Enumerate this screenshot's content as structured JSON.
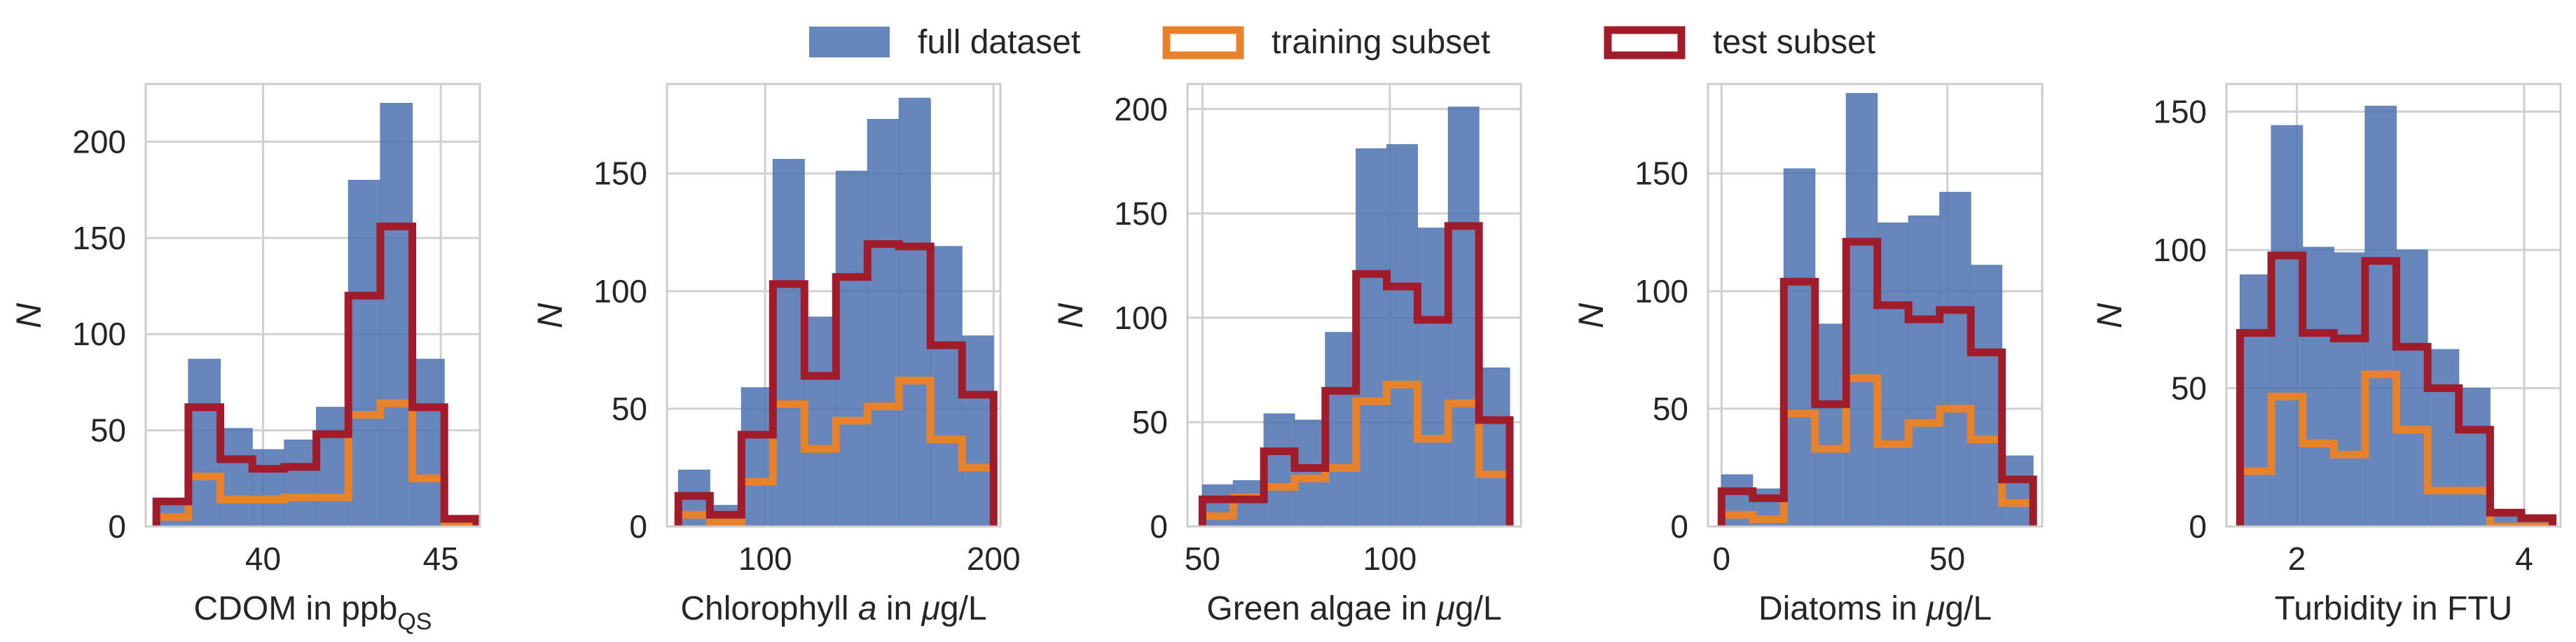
{
  "legend": [
    {
      "label": "full dataset",
      "style": "filled",
      "color": "#4c72b0"
    },
    {
      "label": "training subset",
      "style": "step",
      "color": "#e8822a"
    },
    {
      "label": "test subset",
      "style": "step",
      "color": "#a01c2a"
    }
  ],
  "colors": {
    "full": "#4c72b0",
    "train": "#e8822a",
    "test": "#a01c2a",
    "grid": "#d0d0d0"
  },
  "chart_data": [
    {
      "type": "histogram",
      "xlabel": "CDOM in ppb",
      "xlabel_sub": "QS",
      "ylabel": "N",
      "xlim": [
        36.7,
        46.1
      ],
      "ylim": [
        0,
        230
      ],
      "xticks": [
        40,
        45
      ],
      "yticks": [
        0,
        50,
        100,
        150,
        200
      ],
      "bin_edges": [
        37,
        37.9,
        38.8,
        39.7,
        40.6,
        41.5,
        42.4,
        43.3,
        44.2,
        45.1,
        46
      ],
      "series": [
        {
          "name": "full dataset",
          "values": [
            12,
            87,
            51,
            40,
            45,
            62,
            180,
            220,
            87,
            5
          ]
        },
        {
          "name": "training subset",
          "values": [
            5,
            26,
            14,
            14,
            15,
            15,
            58,
            64,
            25,
            2
          ]
        },
        {
          "name": "test subset",
          "values": [
            13,
            62,
            35,
            30,
            31,
            48,
            120,
            156,
            62,
            4
          ]
        }
      ]
    },
    {
      "type": "histogram",
      "xlabel": "Chlorophyll a in μg/L",
      "xlabel_parts": [
        "Chlorophyll ",
        "a",
        " in ",
        "μ",
        "g/L"
      ],
      "ylabel": "N",
      "xlim": [
        57,
        203
      ],
      "ylim": [
        0,
        188
      ],
      "xticks": [
        100,
        200
      ],
      "yticks": [
        0,
        50,
        100,
        150
      ],
      "bin_edges": [
        62,
        75.8,
        89.6,
        103.4,
        117.2,
        131,
        144.8,
        158.6,
        172.4,
        186.2,
        200
      ],
      "series": [
        {
          "name": "full dataset",
          "values": [
            24,
            9,
            59,
            156,
            89,
            151,
            173,
            182,
            119,
            81
          ]
        },
        {
          "name": "training subset",
          "values": [
            5,
            2,
            19,
            52,
            33,
            45,
            51,
            62,
            37,
            25
          ]
        },
        {
          "name": "test subset",
          "values": [
            13,
            5,
            39,
            103,
            64,
            106,
            120,
            119,
            77,
            56
          ]
        }
      ]
    },
    {
      "type": "histogram",
      "xlabel": "Green algae in μg/L",
      "xlabel_parts": [
        "Green algae in ",
        "μ",
        "g/L"
      ],
      "ylabel": "N",
      "xlim": [
        46,
        135
      ],
      "ylim": [
        0,
        212
      ],
      "xticks": [
        50,
        100
      ],
      "yticks": [
        0,
        50,
        100,
        150,
        200
      ],
      "bin_edges": [
        50,
        58.2,
        66.4,
        74.6,
        82.8,
        91,
        99.2,
        107.4,
        115.6,
        123.8,
        132
      ],
      "series": [
        {
          "name": "full dataset",
          "values": [
            20,
            22,
            54,
            51,
            93,
            181,
            183,
            143,
            201,
            76
          ]
        },
        {
          "name": "training subset",
          "values": [
            5,
            14,
            19,
            23,
            28,
            60,
            68,
            42,
            59,
            25
          ]
        },
        {
          "name": "test subset",
          "values": [
            13,
            13,
            36,
            28,
            65,
            121,
            115,
            99,
            144,
            51
          ]
        }
      ]
    },
    {
      "type": "histogram",
      "xlabel": "Diatoms in μg/L",
      "xlabel_parts": [
        "Diatoms in ",
        "μ",
        "g/L"
      ],
      "ylabel": "N",
      "xlim": [
        -3,
        71
      ],
      "ylim": [
        0,
        188
      ],
      "xticks": [
        0,
        50
      ],
      "yticks": [
        0,
        50,
        100,
        150
      ],
      "bin_edges": [
        0,
        6.9,
        13.8,
        20.7,
        27.6,
        34.5,
        41.4,
        48.3,
        55.2,
        62.1,
        69
      ],
      "series": [
        {
          "name": "full dataset",
          "values": [
            22,
            16,
            152,
            86,
            184,
            129,
            132,
            142,
            111,
            30
          ]
        },
        {
          "name": "training subset",
          "values": [
            5,
            3,
            48,
            33,
            63,
            35,
            44,
            50,
            37,
            10
          ]
        },
        {
          "name": "test subset",
          "values": [
            15,
            12,
            104,
            52,
            121,
            94,
            88,
            92,
            74,
            20
          ]
        }
      ]
    },
    {
      "type": "histogram",
      "xlabel": "Turbidity in FTU",
      "ylabel": "N",
      "xlim": [
        1.38,
        4.32
      ],
      "ylim": [
        0,
        160
      ],
      "xticks": [
        2,
        4
      ],
      "yticks": [
        0,
        50,
        100,
        150
      ],
      "bin_edges": [
        1.5,
        1.775,
        2.05,
        2.325,
        2.6,
        2.875,
        3.15,
        3.425,
        3.7,
        3.975,
        4.25
      ],
      "series": [
        {
          "name": "full dataset",
          "values": [
            91,
            145,
            101,
            99,
            152,
            100,
            64,
            50,
            6,
            3
          ]
        },
        {
          "name": "training subset",
          "values": [
            20,
            47,
            30,
            26,
            55,
            35,
            13,
            13,
            0,
            0
          ]
        },
        {
          "name": "test subset",
          "values": [
            70,
            98,
            70,
            68,
            96,
            65,
            50,
            35,
            5,
            3
          ]
        }
      ]
    }
  ]
}
